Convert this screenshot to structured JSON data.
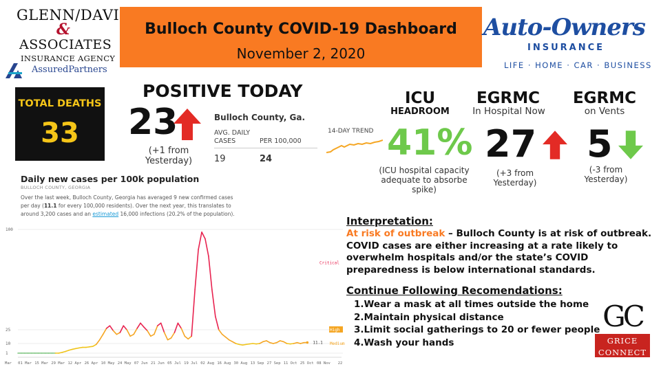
{
  "sponsor_left": {
    "line1": "GLENN/DAVIS",
    "amp": "&",
    "line2": "ASSOCIATES",
    "line3": "INSURANCE AGENCY",
    "line4": "AssuredPartners"
  },
  "header": {
    "title": "Bulloch County COVID-19 Dashboard",
    "date": "November 2, 2020"
  },
  "sponsor_right": {
    "brand": "Auto-Owners",
    "insurance": "INSURANCE",
    "tagline": "LIFE · HOME · CAR · BUSINESS"
  },
  "deaths": {
    "label": "TOTAL DEATHS",
    "value": "33"
  },
  "positive": {
    "label": "POSITIVE TODAY",
    "value": "23",
    "change": "(+1 from Yesterday)",
    "trend": "up"
  },
  "county_stats": {
    "county": "Bulloch County, Ga.",
    "col1_header": "AVG. DAILY CASES",
    "col2_header": "PER 100,000",
    "col1_value": "19",
    "col2_value": "24",
    "trend_label": "14-DAY TREND"
  },
  "icu": {
    "title": "ICU",
    "subtitle": "HEADROOM",
    "value": "41%",
    "note": "(ICU hospital capacity adequate to absorbe spike)"
  },
  "hospital": {
    "title": "EGRMC",
    "subtitle": "In Hospital Now",
    "value": "27",
    "change": "(+3 from Yesterday)",
    "trend": "up"
  },
  "vents": {
    "title": "EGRMC",
    "subtitle": "on Vents",
    "value": "5",
    "change": "(-3 from Yesterday)",
    "trend": "down"
  },
  "colors": {
    "orange": "#f97a22",
    "green": "#6ec94b",
    "red": "#e32b25",
    "chart_red": "#e8224f",
    "chart_orange": "#f5a623",
    "chart_green": "#7cc47f",
    "gold": "#f5c518"
  },
  "chart": {
    "title": "Daily new cases per 100k population",
    "subtitle": "BULLOCH COUNTY, GEORGIA",
    "desc_1": "Over the last week, Bulloch County, Georgia has averaged 9 new confirmed cases per day (",
    "desc_bold": "11.1",
    "desc_2": " for every 100,000 residents). Over the next year, this translates to around 3,200 cases and an ",
    "desc_link": "estimated",
    "desc_3": " 16,000 infections (20.2% of the population)."
  },
  "chart_data": {
    "type": "line",
    "title": "Daily new cases per 100k population",
    "subtitle": "BULLOCH COUNTY, GEORGIA",
    "xlabel": "",
    "ylabel": "",
    "ylim": [
      0,
      100
    ],
    "y_ticks": [
      "100",
      "25",
      "10",
      "1"
    ],
    "y_tick_values": [
      100,
      25,
      10,
      1
    ],
    "x_ticks": [
      "Mar",
      "01 Mar",
      "15 Mar",
      "29 Mar",
      "12 Apr",
      "26 Apr",
      "10 May",
      "24 May",
      "07 Jun",
      "21 Jun",
      "05 Jul",
      "19 Jul",
      "02 Aug",
      "16 Aug",
      "30 Aug",
      "13 Sep",
      "27 Sep",
      "11 Oct",
      "25 Oct",
      "08 Nov",
      "22"
    ],
    "thresholds": [
      {
        "label": "Critical",
        "value": 75
      },
      {
        "label": "High",
        "value": 25
      },
      {
        "label": "Medium",
        "value": 10
      }
    ],
    "grid": true,
    "x": [
      0,
      1,
      2,
      3,
      4,
      5,
      6,
      7,
      8,
      9,
      10,
      11,
      12,
      13,
      14,
      15,
      16,
      17,
      18,
      19,
      20,
      21,
      22,
      23,
      24,
      25,
      26,
      27,
      28,
      29,
      30,
      31,
      32,
      33,
      34,
      35,
      36,
      37,
      38,
      39,
      40,
      41,
      42,
      43,
      44,
      45,
      46,
      47,
      48,
      49,
      50,
      51,
      52,
      53,
      54,
      55,
      56,
      57,
      58,
      59,
      60,
      61,
      62,
      63,
      64,
      65,
      66,
      67,
      68,
      69,
      70,
      71,
      72,
      73,
      74,
      75,
      76,
      77,
      78,
      79,
      80,
      81,
      82,
      83,
      84,
      85
    ],
    "values": [
      0,
      0,
      0,
      0,
      0,
      0.2,
      0.4,
      0.5,
      0.6,
      0.7,
      0.9,
      1,
      1,
      1.2,
      1.5,
      2,
      2.5,
      3,
      3.5,
      4,
      4,
      4.5,
      5,
      8,
      14,
      20,
      26,
      28,
      24,
      20,
      22,
      28,
      25,
      18,
      20,
      26,
      30,
      27,
      24,
      18,
      20,
      28,
      30,
      22,
      14,
      16,
      22,
      30,
      26,
      18,
      15,
      18,
      55,
      85,
      98,
      93,
      80,
      55,
      35,
      25,
      20,
      17,
      14,
      12,
      10,
      8,
      7,
      8,
      9,
      10,
      9,
      10,
      12,
      13,
      11,
      10,
      11,
      13,
      12,
      10,
      9,
      10,
      11,
      10,
      11,
      11.1
    ]
  },
  "interpretation": {
    "heading": "Interpretation:",
    "risk": "At risk of outbreak",
    "body": " – Bulloch County is at risk of outbreak. COVID cases are either increasing at a rate likely to overwhelm hospitals and/or the state’s COVID preparedness is below international standards."
  },
  "recommendations": {
    "heading": "Continue Following Recomendations:",
    "items": [
      "1.Wear a mask at all times outside the home",
      "2.Maintain physical distance",
      "3.Limit social gatherings to 20 or fewer people",
      "4.Wash your hands"
    ]
  },
  "grice": {
    "initials": "GC",
    "line1": "GRICE",
    "line2": "CONNECT"
  }
}
